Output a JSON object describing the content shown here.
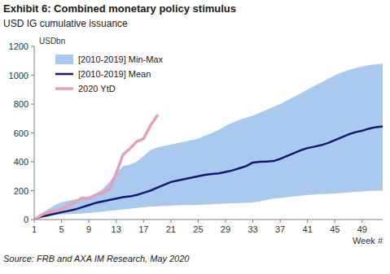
{
  "chart_data": {
    "type": "line",
    "title": "Exhibit 6: Combined monetary policy stimulus",
    "subtitle": "USD IG cumulative issuance",
    "y_label": "USDbn",
    "x_label": "Week #",
    "source": "Source: FRB and AXA IM Research, May 2020",
    "x": [
      1,
      2,
      3,
      4,
      5,
      6,
      7,
      8,
      9,
      10,
      11,
      12,
      13,
      14,
      15,
      16,
      17,
      18,
      19,
      20,
      21,
      22,
      23,
      24,
      25,
      26,
      27,
      28,
      29,
      30,
      31,
      32,
      33,
      34,
      35,
      36,
      37,
      38,
      39,
      40,
      41,
      42,
      43,
      44,
      45,
      46,
      47,
      48,
      49,
      50,
      51,
      52
    ],
    "xlim": [
      1,
      52
    ],
    "xticks": [
      1,
      5,
      9,
      13,
      17,
      21,
      25,
      29,
      33,
      37,
      41,
      45,
      49
    ],
    "ylim": [
      0,
      1200
    ],
    "yticks": [
      0,
      200,
      400,
      600,
      800,
      1000,
      1200
    ],
    "grid": false,
    "legend": "upper left",
    "series": [
      {
        "name": "[2010-2019] Min-Max",
        "type": "band",
        "color": "#a9c9ee",
        "values": [
          0,
          40,
          70,
          100,
          120,
          130,
          140,
          150,
          160,
          180,
          210,
          260,
          320,
          370,
          380,
          400,
          440,
          480,
          500,
          510,
          520,
          530,
          540,
          550,
          560,
          580,
          600,
          620,
          650,
          670,
          690,
          705,
          720,
          740,
          760,
          780,
          800,
          825,
          850,
          875,
          900,
          925,
          950,
          975,
          1000,
          1020,
          1035,
          1050,
          1060,
          1070,
          1075,
          1080
        ],
        "low": [
          0,
          10,
          20,
          30,
          35,
          38,
          40,
          42,
          45,
          50,
          55,
          60,
          65,
          70,
          75,
          80,
          85,
          90,
          92,
          94,
          96,
          98,
          100,
          100,
          102,
          104,
          106,
          108,
          110,
          112,
          114,
          116,
          118,
          125,
          135,
          145,
          150,
          155,
          160,
          165,
          170,
          173,
          176,
          178,
          180,
          184,
          188,
          192,
          195,
          198,
          200,
          200
        ]
      },
      {
        "name": "[2010-2019] Mean",
        "type": "line",
        "color": "#16166e",
        "values": [
          0,
          20,
          30,
          40,
          50,
          60,
          70,
          85,
          100,
          115,
          125,
          135,
          145,
          155,
          160,
          170,
          185,
          200,
          220,
          240,
          260,
          270,
          280,
          290,
          300,
          310,
          315,
          320,
          330,
          340,
          355,
          370,
          395,
          400,
          402,
          405,
          420,
          440,
          460,
          480,
          495,
          505,
          515,
          530,
          550,
          570,
          590,
          605,
          615,
          630,
          640,
          645
        ]
      },
      {
        "name": "2020 YtD",
        "type": "line",
        "color": "#e79fb6",
        "values": [
          0,
          30,
          50,
          60,
          70,
          95,
          120,
          150,
          145,
          170,
          185,
          210,
          320,
          450,
          490,
          540,
          560,
          650,
          720,
          null,
          null,
          null,
          null,
          null,
          null,
          null,
          null,
          null,
          null,
          null,
          null,
          null,
          null,
          null,
          null,
          null,
          null,
          null,
          null,
          null,
          null,
          null,
          null,
          null,
          null,
          null,
          null,
          null,
          null,
          null,
          null,
          null
        ]
      }
    ]
  }
}
